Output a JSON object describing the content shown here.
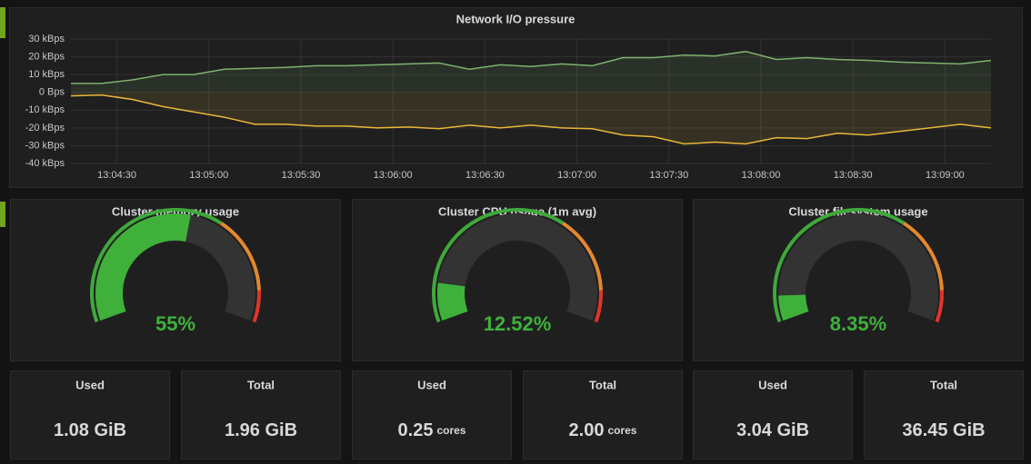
{
  "chart_data": {
    "type": "line",
    "title": "Network I/O pressure",
    "x": [
      "13:04:15",
      "13:04:25",
      "13:04:35",
      "13:04:45",
      "13:04:55",
      "13:05:05",
      "13:05:15",
      "13:05:25",
      "13:05:35",
      "13:05:45",
      "13:05:55",
      "13:06:05",
      "13:06:15",
      "13:06:25",
      "13:06:35",
      "13:06:45",
      "13:06:55",
      "13:07:05",
      "13:07:15",
      "13:07:25",
      "13:07:35",
      "13:07:45",
      "13:07:55",
      "13:08:05",
      "13:08:15",
      "13:08:25",
      "13:08:35",
      "13:08:45",
      "13:08:55",
      "13:09:05",
      "13:09:15"
    ],
    "series": [
      {
        "color": "#7eb26d",
        "values": [
          5,
          5,
          7,
          10,
          10,
          13,
          13.5,
          14,
          15,
          15,
          15.5,
          16,
          16.5,
          13,
          15.5,
          14.5,
          16,
          15,
          19.5,
          19.5,
          21,
          20.5,
          23,
          18.5,
          19.5,
          18.5,
          18,
          17,
          16.5,
          16,
          18
        ]
      },
      {
        "color": "#eab839",
        "values": [
          -2,
          -1.5,
          -4,
          -8,
          -11,
          -14,
          -18,
          -18,
          -19,
          -19,
          -20,
          -19.5,
          -20.5,
          -18.5,
          -20,
          -18.5,
          -20,
          -20.5,
          -24,
          -25,
          -29,
          -28,
          -29,
          -25.5,
          -26,
          -23,
          -24,
          -22,
          -20,
          -18,
          -20
        ]
      }
    ],
    "xlim": [
      "13:04:15",
      "13:09:15"
    ],
    "xticks": [
      "13:04:30",
      "13:05:00",
      "13:05:30",
      "13:06:00",
      "13:06:30",
      "13:07:00",
      "13:07:30",
      "13:08:00",
      "13:08:30",
      "13:09:00"
    ],
    "ylim": [
      -40,
      30
    ],
    "yticks": [
      {
        "value": 30,
        "label": "30 kBps"
      },
      {
        "value": 20,
        "label": "20 kBps"
      },
      {
        "value": 10,
        "label": "10 kBps"
      },
      {
        "value": 0,
        "label": "0 Bps"
      },
      {
        "value": -10,
        "label": "-10 kBps"
      },
      {
        "value": -20,
        "label": "-20 kBps"
      },
      {
        "value": -30,
        "label": "-30 kBps"
      },
      {
        "value": -40,
        "label": "-40 kBps"
      }
    ],
    "grid": true
  },
  "gauges": [
    {
      "title": "Cluster memory usage",
      "value": 55,
      "value_label": "55%",
      "range": [
        0,
        100
      ],
      "thresholds": [
        65,
        90
      ]
    },
    {
      "title": "Cluster CPU usage (1m avg)",
      "value": 12.52,
      "value_label": "12.52%",
      "range": [
        0,
        100
      ],
      "thresholds": [
        65,
        90
      ]
    },
    {
      "title": "Cluster filesystem usage",
      "value": 8.35,
      "value_label": "8.35%",
      "range": [
        0,
        100
      ],
      "thresholds": [
        65,
        90
      ]
    }
  ],
  "stats": [
    {
      "label": "Used",
      "value": "1.08 GiB"
    },
    {
      "label": "Total",
      "value": "1.96 GiB"
    },
    {
      "label": "Used",
      "value": "0.25",
      "unit": "cores"
    },
    {
      "label": "Total",
      "value": "2.00",
      "unit": "cores"
    },
    {
      "label": "Used",
      "value": "3.04 GiB"
    },
    {
      "label": "Total",
      "value": "36.45 GiB"
    }
  ]
}
